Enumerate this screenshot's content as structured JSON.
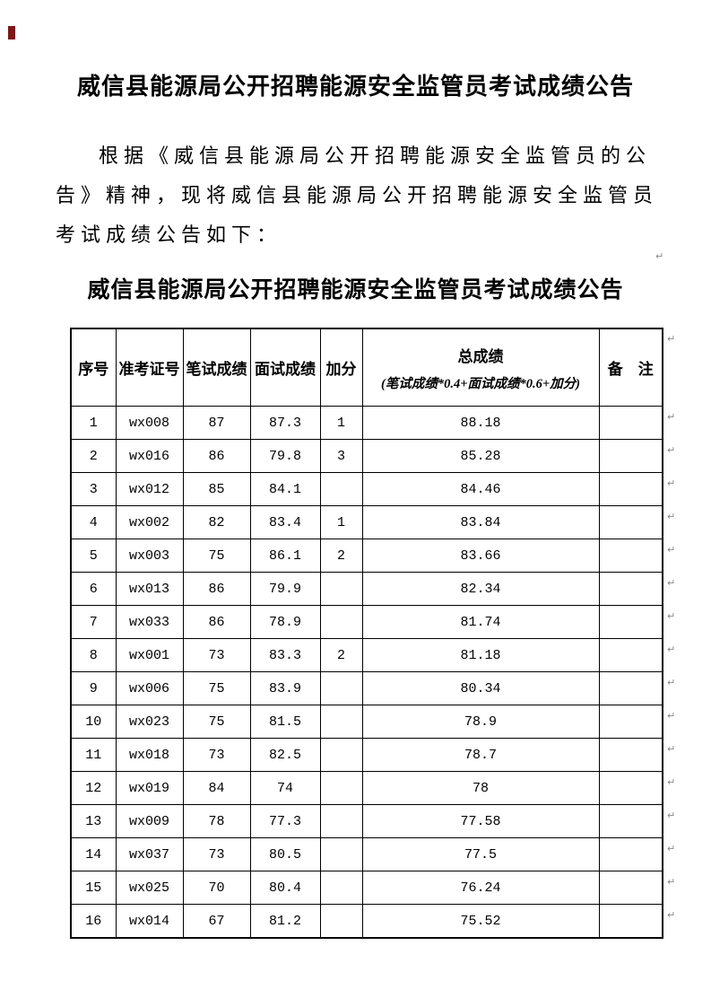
{
  "title": "威信县能源局公开招聘能源安全监管员考试成绩公告",
  "paragraph": {
    "lines": [
      "根据《威信县能源局公开招聘能源安全监管员的公",
      "告》精神，现将威信县能源局公开招聘能源安全监管员",
      "考试成绩公告如下："
    ]
  },
  "table_title": "威信县能源局公开招聘能源安全监管员考试成绩公告",
  "table": {
    "columns": [
      {
        "label": "序号"
      },
      {
        "label": "准考证号"
      },
      {
        "label": "笔试成绩"
      },
      {
        "label": "面试成绩"
      },
      {
        "label": "加分"
      },
      {
        "label": "总成绩",
        "formula": "(笔试成绩*0.4+面试成绩*0.6+加分)"
      },
      {
        "label": "备　注"
      }
    ],
    "rows": [
      [
        "1",
        "wx008",
        "87",
        "87.3",
        "1",
        "88.18",
        ""
      ],
      [
        "2",
        "wx016",
        "86",
        "79.8",
        "3",
        "85.28",
        ""
      ],
      [
        "3",
        "wx012",
        "85",
        "84.1",
        "",
        "84.46",
        ""
      ],
      [
        "4",
        "wx002",
        "82",
        "83.4",
        "1",
        "83.84",
        ""
      ],
      [
        "5",
        "wx003",
        "75",
        "86.1",
        "2",
        "83.66",
        ""
      ],
      [
        "6",
        "wx013",
        "86",
        "79.9",
        "",
        "82.34",
        ""
      ],
      [
        "7",
        "wx033",
        "86",
        "78.9",
        "",
        "81.74",
        ""
      ],
      [
        "8",
        "wx001",
        "73",
        "83.3",
        "2",
        "81.18",
        ""
      ],
      [
        "9",
        "wx006",
        "75",
        "83.9",
        "",
        "80.34",
        ""
      ],
      [
        "10",
        "wx023",
        "75",
        "81.5",
        "",
        "78.9",
        ""
      ],
      [
        "11",
        "wx018",
        "73",
        "82.5",
        "",
        "78.7",
        ""
      ],
      [
        "12",
        "wx019",
        "84",
        "74",
        "",
        "78",
        ""
      ],
      [
        "13",
        "wx009",
        "78",
        "77.3",
        "",
        "77.58",
        ""
      ],
      [
        "14",
        "wx037",
        "73",
        "80.5",
        "",
        "77.5",
        ""
      ],
      [
        "15",
        "wx025",
        "70",
        "80.4",
        "",
        "76.24",
        ""
      ],
      [
        "16",
        "wx014",
        "67",
        "81.2",
        "",
        "75.52",
        ""
      ]
    ]
  },
  "formatting_mark_glyph": "↵",
  "artifact_color": "#7b1818"
}
